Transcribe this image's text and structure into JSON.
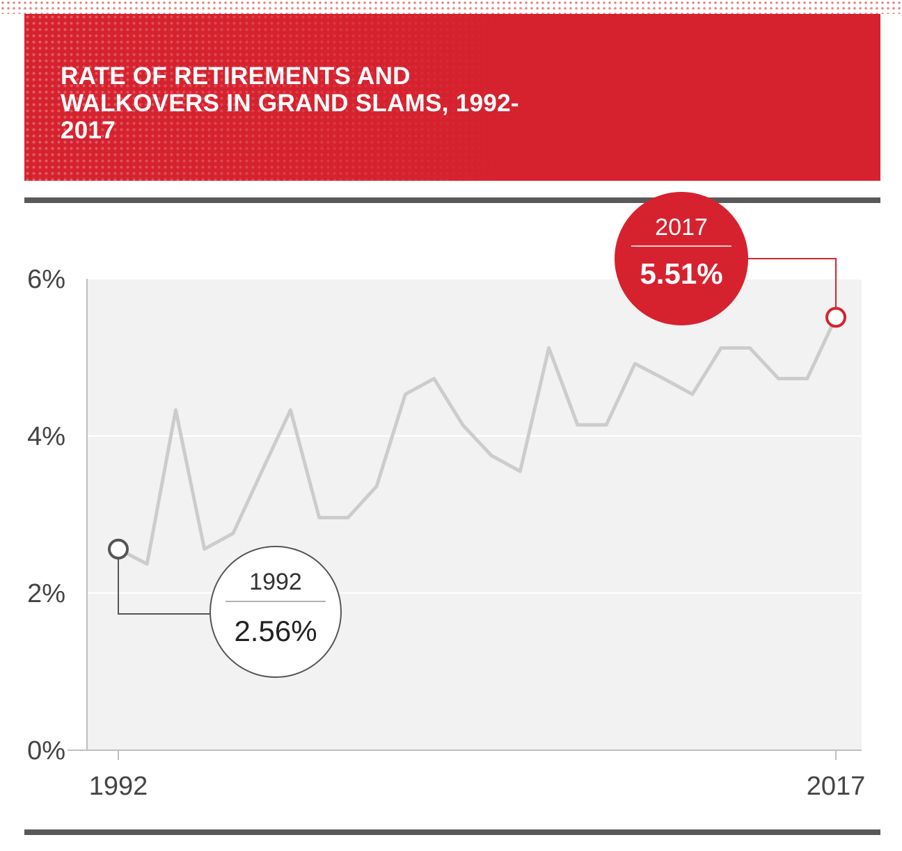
{
  "header": {
    "title": "RATE OF RETIREMENTS AND WALKOVERS IN GRAND SLAMS, 1992-2017"
  },
  "colors": {
    "brand_red": "#d6222f",
    "line_gray": "#cccccc",
    "plot_bg": "#f2f2f2",
    "rule_dark": "#595959"
  },
  "chart_data": {
    "type": "line",
    "title": "RATE OF RETIREMENTS AND WALKOVERS IN GRAND SLAMS, 1992-2017",
    "xlabel": "",
    "ylabel": "",
    "x": [
      1992,
      1993,
      1994,
      1995,
      1996,
      1997,
      1998,
      1999,
      2000,
      2001,
      2002,
      2003,
      2004,
      2005,
      2006,
      2007,
      2008,
      2009,
      2010,
      2011,
      2012,
      2013,
      2014,
      2015,
      2016,
      2017
    ],
    "x_tick_labels": [
      "1992",
      "2017"
    ],
    "series": [
      {
        "name": "Rate of retirements and walkovers",
        "values": [
          2.56,
          2.37,
          4.33,
          2.56,
          2.76,
          3.55,
          4.33,
          2.96,
          2.96,
          3.36,
          4.53,
          4.73,
          4.14,
          3.75,
          3.55,
          5.12,
          4.14,
          4.14,
          4.92,
          4.73,
          4.53,
          5.12,
          5.12,
          4.73,
          4.73,
          5.51
        ]
      }
    ],
    "ylim": [
      0,
      6
    ],
    "y_ticks": [
      0,
      2,
      4,
      6
    ],
    "y_tick_labels": [
      "0%",
      "2%",
      "4%",
      "6%"
    ],
    "grid": true,
    "annotations": [
      {
        "year": "1992",
        "value": "2.56%",
        "style": "outline"
      },
      {
        "year": "2017",
        "value": "5.51%",
        "style": "red"
      }
    ]
  }
}
